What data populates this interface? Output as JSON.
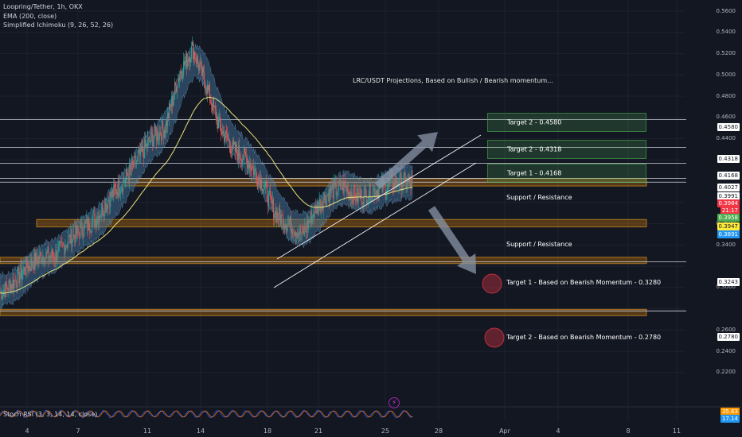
{
  "header": {
    "symbol": "Loopring/Tether, 1h, OKX",
    "indicators": [
      "EMA (200, close)",
      "Simplified Ichimoku (9, 26, 52, 26)"
    ],
    "stoch_label": "Stoch RSI (3, 3, 14, 14, close)"
  },
  "annotations": {
    "projection_title": "LRC/USDT Projections, Based on Bullish / Bearish momentum...",
    "support_resistance_upper": "Support / Resistance",
    "support_resistance_lower": "Support / Resistance",
    "target_box_1": "Target 1 - 0.4168",
    "target_box_2a": "Target 2 - 0.4318",
    "target_box_2b": "Target 2 - 0.4580",
    "bear_target_1": "Target 1 - Based on Bearish Momentum - 0.3280",
    "bear_target_2": "Target 2 - Based on Bearish Momentum - 0.2780",
    "indicator_badge": "⚡"
  },
  "price_axis": {
    "ticks": [
      "0.5600",
      "0.5400",
      "0.5200",
      "0.5000",
      "0.4800",
      "0.4600",
      "0.4400",
      "0.4200",
      "0.4000",
      "0.3800",
      "0.3600",
      "0.3400",
      "0.3200",
      "0.3000",
      "0.2800",
      "0.2600",
      "0.2400",
      "0.2200"
    ],
    "tags": [
      {
        "value": "0.4580",
        "bg": "#ffffff",
        "fg": "#131722"
      },
      {
        "value": "0.4318",
        "bg": "#ffffff",
        "fg": "#131722"
      },
      {
        "value": "0.4168",
        "bg": "#ffffff",
        "fg": "#131722"
      },
      {
        "value": "0.4027",
        "bg": "#ffffff",
        "fg": "#131722"
      },
      {
        "value": "0.3991",
        "bg": "#ffffff",
        "fg": "#131722"
      },
      {
        "value": "0.3984",
        "bg": "#f23645",
        "fg": "#ffffff"
      },
      {
        "value": "21:17",
        "bg": "#f23645",
        "fg": "#ffffff"
      },
      {
        "value": "0.3958",
        "bg": "#4caf50",
        "fg": "#ffffff"
      },
      {
        "value": "0.3947",
        "bg": "#ffeb3b",
        "fg": "#131722"
      },
      {
        "value": "0.3891",
        "bg": "#2196f3",
        "fg": "#ffffff"
      },
      {
        "value": "0.3243",
        "bg": "#ffffff",
        "fg": "#131722"
      },
      {
        "value": "0.2780",
        "bg": "#ffffff",
        "fg": "#131722"
      }
    ],
    "stoch_tags": [
      {
        "value": "35.63",
        "bg": "#ff9800",
        "fg": "#ffffff"
      },
      {
        "value": "17.14",
        "bg": "#2196f3",
        "fg": "#ffffff"
      }
    ]
  },
  "time_axis": [
    "4",
    "7",
    "11",
    "14",
    "18",
    "21",
    "25",
    "28",
    "Apr",
    "4",
    "8",
    "11"
  ],
  "colors": {
    "background": "#131722",
    "bull": "#26a69a",
    "bear": "#ef5350",
    "ema": "#e8e27a",
    "cloud": "#4a7fa8",
    "zone": "#a9670e",
    "target_green": "#4caf50",
    "bear_circle": "#f23645",
    "stoch_k": "#2962ff",
    "stoch_d": "#ff6d00"
  },
  "chart_data": {
    "type": "candlestick",
    "symbol": "LRC/USDT",
    "timeframe": "1h",
    "ylim": [
      0.21,
      0.565
    ],
    "x_ticks": [
      "4",
      "7",
      "11",
      "14",
      "18",
      "21",
      "25",
      "28",
      "Apr",
      "4",
      "8",
      "11"
    ],
    "close_path_approx": [
      0.295,
      0.305,
      0.32,
      0.33,
      0.33,
      0.345,
      0.355,
      0.365,
      0.385,
      0.4,
      0.42,
      0.44,
      0.45,
      0.5,
      0.525,
      0.49,
      0.45,
      0.43,
      0.42,
      0.4,
      0.37,
      0.36,
      0.35,
      0.375,
      0.39,
      0.395,
      0.385,
      0.39,
      0.395,
      0.4,
      0.398
    ],
    "horizontal_levels": [
      0.458,
      0.4318,
      0.4168,
      0.4027,
      0.3991,
      0.3243,
      0.278
    ],
    "zones": [
      {
        "label": "Support / Resistance",
        "low": 0.3955,
        "high": 0.4025
      },
      {
        "label": "Support / Resistance",
        "low": 0.357,
        "high": 0.364
      },
      {
        "label": "Target 1 - Based on Bearish Momentum - 0.3280",
        "low": 0.3225,
        "high": 0.3285
      },
      {
        "label": "Target 2 - Based on Bearish Momentum - 0.2780",
        "low": 0.2735,
        "high": 0.2795
      }
    ],
    "targets_bullish": [
      0.4168,
      0.4318,
      0.458
    ],
    "targets_bearish": [
      0.328,
      0.278
    ],
    "last_price": 0.3984
  }
}
